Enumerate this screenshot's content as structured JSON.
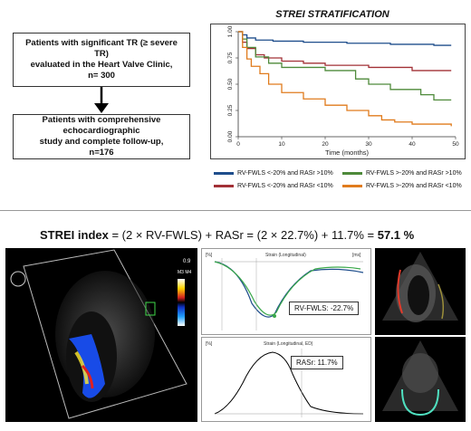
{
  "flowchart": {
    "box1": {
      "line1": "Patients with significant TR (≥ severe TR)",
      "line2": "evaluated in the Heart Valve Clinic,",
      "line3": "n= 300"
    },
    "box2": {
      "line1": "Patients with comprehensive echocardiographic",
      "line2": "study and complete follow-up,",
      "line3": "n=176"
    }
  },
  "km": {
    "title": "STREI STRATIFICATION",
    "xlabel": "Time (months)",
    "yticks": [
      "1.00",
      "0.75",
      "0.50",
      "0.25",
      "0.00"
    ],
    "xticks": [
      "0",
      "10",
      "20",
      "30",
      "40",
      "50"
    ],
    "legend": [
      {
        "label": "RV-FWLS <-20% and RASr >10%",
        "color": "#1f4e8c"
      },
      {
        "label": "RV-FWLS >-20% and RASr >10%",
        "color": "#4e8a3a"
      },
      {
        "label": "RV-FWLS <-20% and RASr <10%",
        "color": "#a23036"
      },
      {
        "label": "RV-FWLS >-20% and RASr <10%",
        "color": "#e07b1c"
      }
    ]
  },
  "chart_data": {
    "type": "line",
    "title": "STREI STRATIFICATION",
    "xlabel": "Time (months)",
    "ylabel": "",
    "xlim": [
      0,
      50
    ],
    "ylim": [
      0,
      1
    ],
    "series": [
      {
        "name": "RV-FWLS <-20% and RASr >10%",
        "color": "#1f4e8c",
        "x": [
          0,
          1,
          2,
          4,
          8,
          15,
          25,
          35,
          45,
          49
        ],
        "y": [
          1.0,
          0.97,
          0.94,
          0.92,
          0.91,
          0.9,
          0.89,
          0.88,
          0.87,
          0.87
        ]
      },
      {
        "name": "RV-FWLS <-20% and RASr <10%",
        "color": "#a23036",
        "x": [
          0,
          1,
          2,
          4,
          6,
          10,
          15,
          20,
          30,
          40,
          49
        ],
        "y": [
          1.0,
          0.9,
          0.84,
          0.78,
          0.75,
          0.72,
          0.7,
          0.68,
          0.66,
          0.63,
          0.63
        ]
      },
      {
        "name": "RV-FWLS >-20% and RASr >10%",
        "color": "#4e8a3a",
        "x": [
          0,
          1,
          2,
          4,
          7,
          10,
          20,
          27,
          30,
          35,
          42,
          45,
          49
        ],
        "y": [
          1.0,
          0.93,
          0.85,
          0.76,
          0.7,
          0.66,
          0.63,
          0.55,
          0.5,
          0.45,
          0.4,
          0.35,
          0.35
        ]
      },
      {
        "name": "RV-FWLS >-20% and RASr <10%",
        "color": "#e07b1c",
        "x": [
          0,
          1,
          2,
          3,
          5,
          7,
          10,
          15,
          20,
          25,
          30,
          33,
          36,
          40,
          45,
          48,
          49
        ],
        "y": [
          1.0,
          0.85,
          0.74,
          0.67,
          0.6,
          0.5,
          0.42,
          0.36,
          0.3,
          0.25,
          0.2,
          0.16,
          0.14,
          0.12,
          0.12,
          0.12,
          0.1
        ]
      }
    ]
  },
  "formula": {
    "label": "STREI index",
    "eq": " = (2 × RV-FWLS) + RASr = (2 × 22.7%) + 11.7% = ",
    "result": "57.1 %"
  },
  "echo": {
    "rvfwls_label": "RV-FWLS: -22.7%",
    "rasr_label": "RASr: 11.7%",
    "strain_title_top": "Strain (Longitudinal)",
    "strain_title_bottom": "Strain (Longitudinal, ED)",
    "scale_top": "0.9",
    "scale_mid": "M3 M4",
    "unit_pct": "[%]",
    "unit_ms": "[ms]"
  }
}
